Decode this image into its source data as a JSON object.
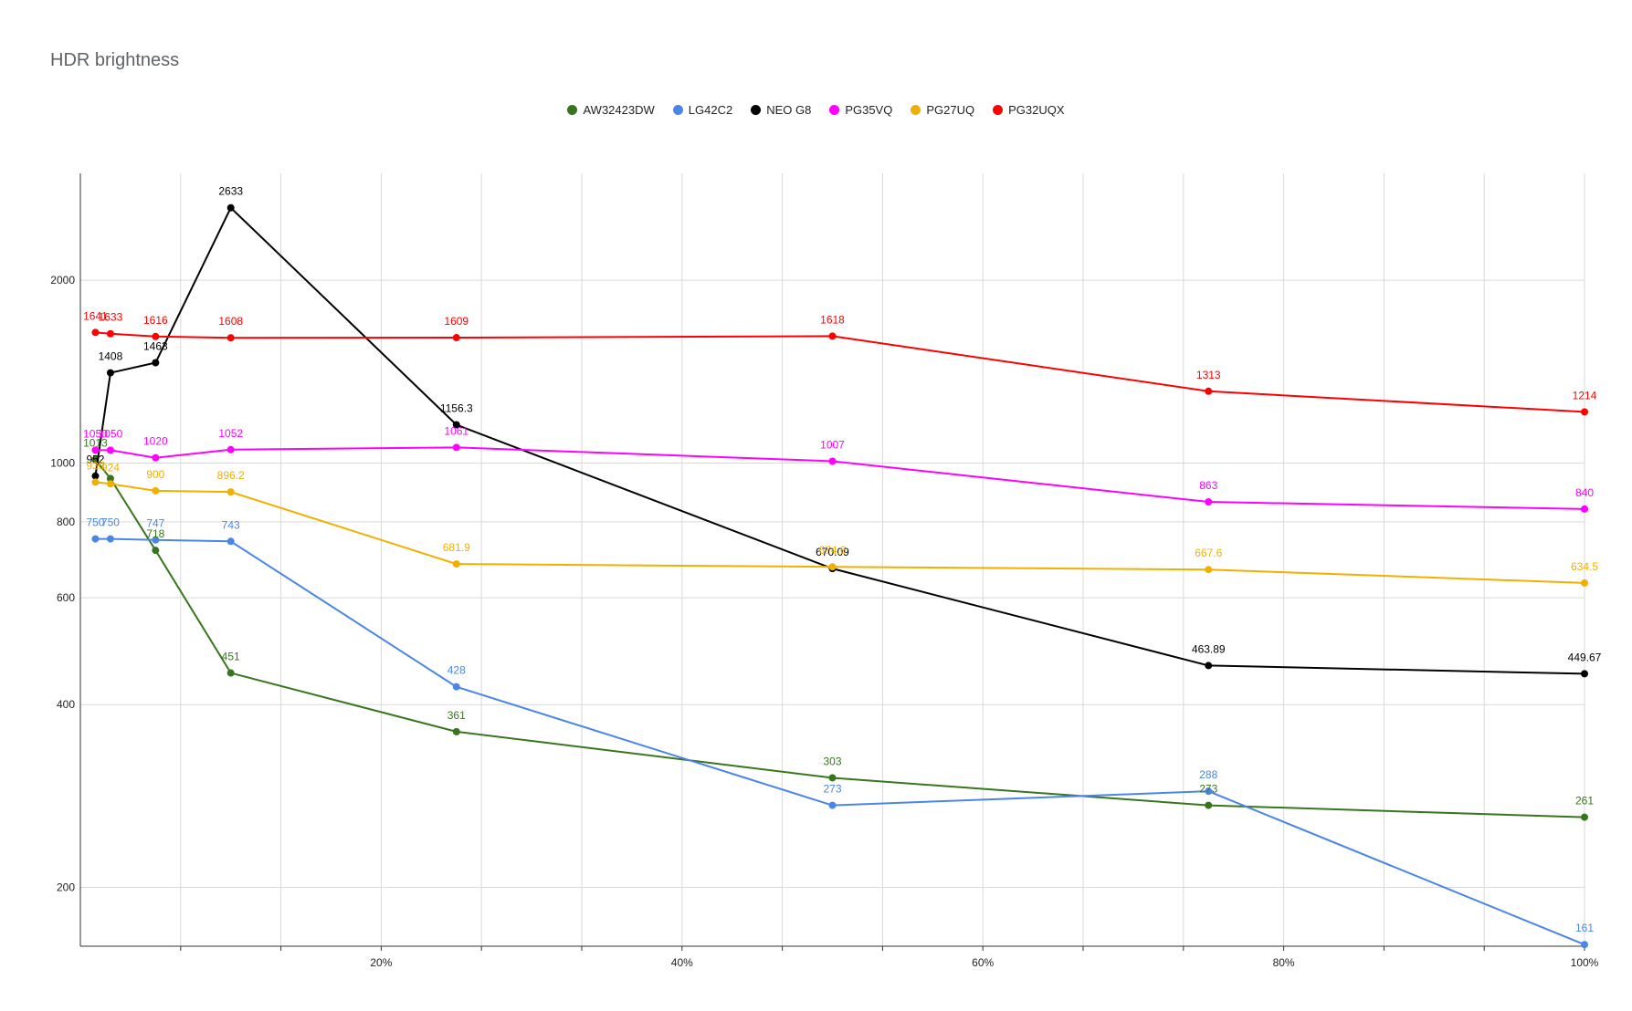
{
  "chart_data": {
    "type": "line",
    "title": "HDR brightness",
    "xlabel": "",
    "ylabel": "",
    "x": [
      1,
      2,
      5,
      10,
      25,
      50,
      75,
      100
    ],
    "x_ticks": [
      "20%",
      "40%",
      "60%",
      "80%",
      "100%"
    ],
    "x_tick_values": [
      20,
      40,
      60,
      80,
      100
    ],
    "y_ticks": [
      "200",
      "400",
      "600",
      "800",
      "1000",
      "2000"
    ],
    "y_tick_values": [
      200,
      400,
      600,
      800,
      1000,
      2000
    ],
    "y_scale": "log",
    "ylim": [
      160,
      3000
    ],
    "xlim": [
      0,
      100
    ],
    "grid": true,
    "legend_position": "top",
    "series": [
      {
        "name": "AW32423DW",
        "color": "#38761d",
        "points": [
          [
            1,
            1013
          ],
          [
            2,
            943
          ],
          [
            5,
            718
          ],
          [
            10,
            451
          ],
          [
            25,
            361
          ],
          [
            50,
            303
          ],
          [
            75,
            273
          ],
          [
            100,
            261
          ]
        ],
        "labels": [
          "1013",
          "",
          "718",
          "451",
          "361",
          "303",
          "273",
          "261"
        ]
      },
      {
        "name": "LG42C2",
        "color": "#4a86e8",
        "points": [
          [
            1,
            750
          ],
          [
            2,
            750
          ],
          [
            5,
            747
          ],
          [
            10,
            743
          ],
          [
            25,
            428
          ],
          [
            50,
            273
          ],
          [
            75,
            288
          ],
          [
            100,
            161
          ]
        ],
        "labels": [
          "750",
          "750",
          "747",
          "743",
          "428",
          "273",
          "288",
          "161"
        ]
      },
      {
        "name": "NEO G8",
        "color": "#000000",
        "points": [
          [
            1,
            952
          ],
          [
            2,
            1408
          ],
          [
            5,
            1463
          ],
          [
            10,
            2633
          ],
          [
            25,
            1156.3
          ],
          [
            50,
            670.09
          ],
          [
            75,
            463.89
          ],
          [
            100,
            449.67
          ]
        ],
        "labels": [
          "952",
          "1408",
          "1463",
          "2633",
          "1156.3",
          "670.09",
          "463.89",
          "449.67"
        ]
      },
      {
        "name": "PG35VQ",
        "color": "#ff00ff",
        "points": [
          [
            1,
            1050
          ],
          [
            2,
            1050
          ],
          [
            5,
            1020
          ],
          [
            10,
            1052
          ],
          [
            25,
            1061
          ],
          [
            50,
            1007
          ],
          [
            75,
            863
          ],
          [
            100,
            840
          ]
        ],
        "labels": [
          "1050",
          "1050",
          "1020",
          "1052",
          "1061",
          "1007",
          "863",
          "840"
        ]
      },
      {
        "name": "PG27UQ",
        "color": "#f1b000",
        "points": [
          [
            1,
            930
          ],
          [
            2,
            924
          ],
          [
            5,
            900
          ],
          [
            10,
            896.2
          ],
          [
            25,
            681.9
          ],
          [
            50,
            674.6
          ],
          [
            75,
            667.6
          ],
          [
            100,
            634.5
          ]
        ],
        "labels": [
          "930",
          "924",
          "900",
          "896.2",
          "681.9",
          "674.6",
          "667.6",
          "634.5"
        ]
      },
      {
        "name": "PG32UQX",
        "color": "#ff0000",
        "points": [
          [
            1,
            1641
          ],
          [
            2,
            1633
          ],
          [
            5,
            1616
          ],
          [
            10,
            1608
          ],
          [
            25,
            1609
          ],
          [
            50,
            1618
          ],
          [
            75,
            1313
          ],
          [
            100,
            1214
          ]
        ],
        "labels": [
          "1641",
          "1633",
          "1616",
          "1608",
          "1609",
          "1618",
          "1313",
          "1214"
        ]
      }
    ]
  }
}
